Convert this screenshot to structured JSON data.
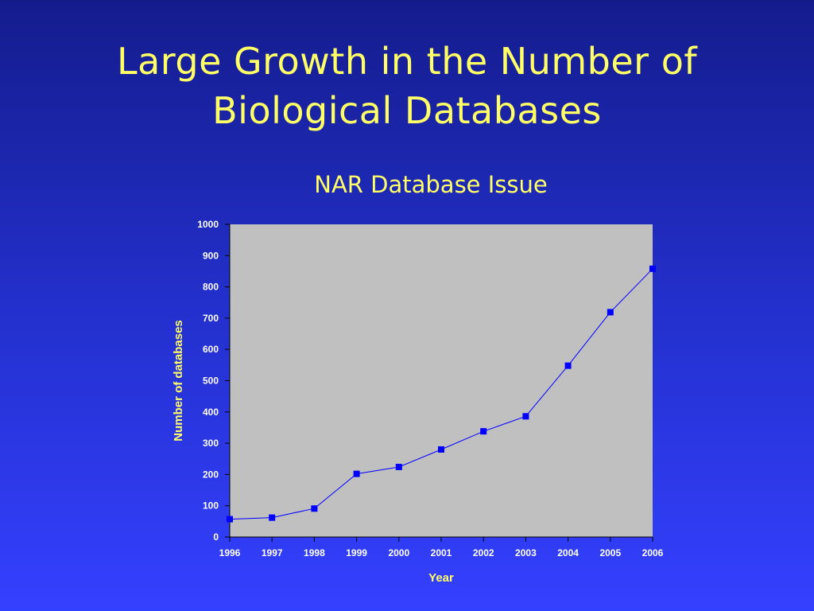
{
  "slide": {
    "title_line1": "Large Growth in the Number of",
    "title_line2": "Biological Databases"
  },
  "chart_data": {
    "type": "line",
    "title": "NAR Database Issue",
    "xlabel": "Year",
    "ylabel": "Number of databases",
    "x": [
      "1996",
      "1997",
      "1998",
      "1999",
      "2000",
      "2001",
      "2002",
      "2003",
      "2004",
      "2005",
      "2006"
    ],
    "series": [
      {
        "values": [
          57,
          62,
          91,
          202,
          224,
          280,
          338,
          386,
          548,
          719,
          858
        ]
      }
    ],
    "yticks": [
      "0",
      "100",
      "200",
      "300",
      "400",
      "500",
      "600",
      "700",
      "800",
      "900",
      "1000"
    ],
    "ylim": [
      0,
      1000
    ],
    "grid": false,
    "legend": "none",
    "colors": {
      "plot_background": "#c0c0c0",
      "line": "#0000ff",
      "marker": "#0000ff",
      "title_text": "#ffff66",
      "tick_text": "#ffffff"
    }
  }
}
